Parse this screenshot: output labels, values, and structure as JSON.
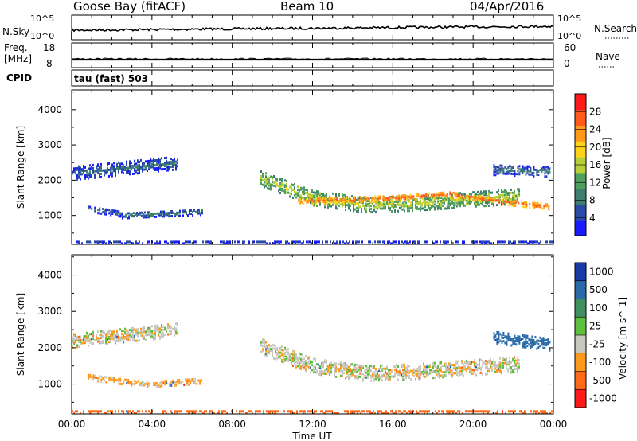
{
  "header": {
    "station": "Goose Bay (fitACF)",
    "beam": "Beam 10",
    "date": "04/Apr/2016"
  },
  "summary": {
    "nsky_label": "N.Sky",
    "nsky_ticks": [
      "10^5",
      "10^0"
    ],
    "nsearch_label": "N.Search",
    "freq_label_1": "Freq.",
    "freq_label_2": "[MHz]",
    "freq_ticks": [
      "18",
      "8"
    ],
    "nave_label": "Nave",
    "nave_ticks": [
      "60",
      "0"
    ],
    "cpid_label": "CPID",
    "cpid_value": "tau (fast) 503"
  },
  "colors": {
    "power_scale": [
      "#1a1aff",
      "#2a4aa8",
      "#3f7f6f",
      "#4f9f5f",
      "#b8cf3a",
      "#ffd21a",
      "#ff9a1a",
      "#ff5a1a",
      "#ff1a1a"
    ],
    "velocity_scale": [
      "#1a3aa8",
      "#2a6aa8",
      "#3f8f5f",
      "#5fbf3f",
      "#c8c8be",
      "#ff9a1a",
      "#ff6a1a",
      "#ff1a1a"
    ]
  },
  "chart_data": [
    {
      "type": "heatmap",
      "title": "Power",
      "xlabel": "",
      "ylabel": "Slant Range [km]",
      "x_ticks": [
        "00:00",
        "04:00",
        "08:00",
        "12:00",
        "16:00",
        "20:00",
        "00:00"
      ],
      "xlim_hours": [
        0,
        24
      ],
      "y_ticks": [
        1000,
        2000,
        3000,
        4000
      ],
      "ylim": [
        180,
        4560
      ],
      "colorbar": {
        "label": "Power [dB]",
        "ticks": [
          4,
          8,
          12,
          16,
          20,
          24,
          28
        ]
      },
      "bands": [
        {
          "t": [
            0.0,
            5.3
          ],
          "r_center": [
            2200,
            2350,
            2500
          ],
          "width": 380,
          "db": 8
        },
        {
          "t": [
            0.8,
            2.5
          ],
          "r_center": [
            1200,
            1050
          ],
          "width": 180,
          "db": 7
        },
        {
          "t": [
            2.5,
            6.5
          ],
          "r_center": [
            1000,
            1050,
            1100
          ],
          "width": 160,
          "db": 9
        },
        {
          "t": [
            9.4,
            22.3
          ],
          "r_center": [
            2050,
            1500,
            1300,
            1350,
            1450,
            1550
          ],
          "width": 420,
          "db": 16
        },
        {
          "t": [
            11.2,
            23.8
          ],
          "r_center": [
            1400,
            1450,
            1500,
            1600,
            1400,
            1250
          ],
          "width": 160,
          "db": 26
        },
        {
          "t": [
            21.0,
            23.8
          ],
          "r_center": [
            2300,
            2250
          ],
          "width": 300,
          "db": 8
        },
        {
          "t": [
            0.0,
            24.0
          ],
          "r_center": [
            240,
            240
          ],
          "width": 70,
          "db": 6
        }
      ]
    },
    {
      "type": "heatmap",
      "title": "Velocity",
      "xlabel": "Time UT",
      "ylabel": "Slant Range [km]",
      "x_ticks": [
        "00:00",
        "04:00",
        "08:00",
        "12:00",
        "16:00",
        "20:00",
        "00:00"
      ],
      "xlim_hours": [
        0,
        24
      ],
      "y_ticks": [
        1000,
        2000,
        3000,
        4000
      ],
      "ylim": [
        180,
        4560
      ],
      "colorbar": {
        "label": "Velocity [m s^-1]",
        "ticks": [
          "1000",
          "500",
          "100",
          "25",
          "-25",
          "-100",
          "-500",
          "-1000"
        ]
      },
      "bands": [
        {
          "t": [
            0.0,
            5.3
          ],
          "r_center": [
            2200,
            2350,
            2500
          ],
          "width": 380,
          "v": 0
        },
        {
          "t": [
            0.8,
            6.5
          ],
          "r_center": [
            1200,
            1000,
            1100
          ],
          "width": 170,
          "v": -40
        },
        {
          "t": [
            9.4,
            22.3
          ],
          "r_center": [
            2050,
            1500,
            1300,
            1350,
            1450,
            1550
          ],
          "width": 420,
          "v": 0
        },
        {
          "t": [
            21.0,
            23.8
          ],
          "r_center": [
            2300,
            2100
          ],
          "width": 350,
          "v": 300
        },
        {
          "t": [
            0.0,
            24.0
          ],
          "r_center": [
            240,
            240
          ],
          "width": 70,
          "v": -200
        }
      ]
    }
  ]
}
